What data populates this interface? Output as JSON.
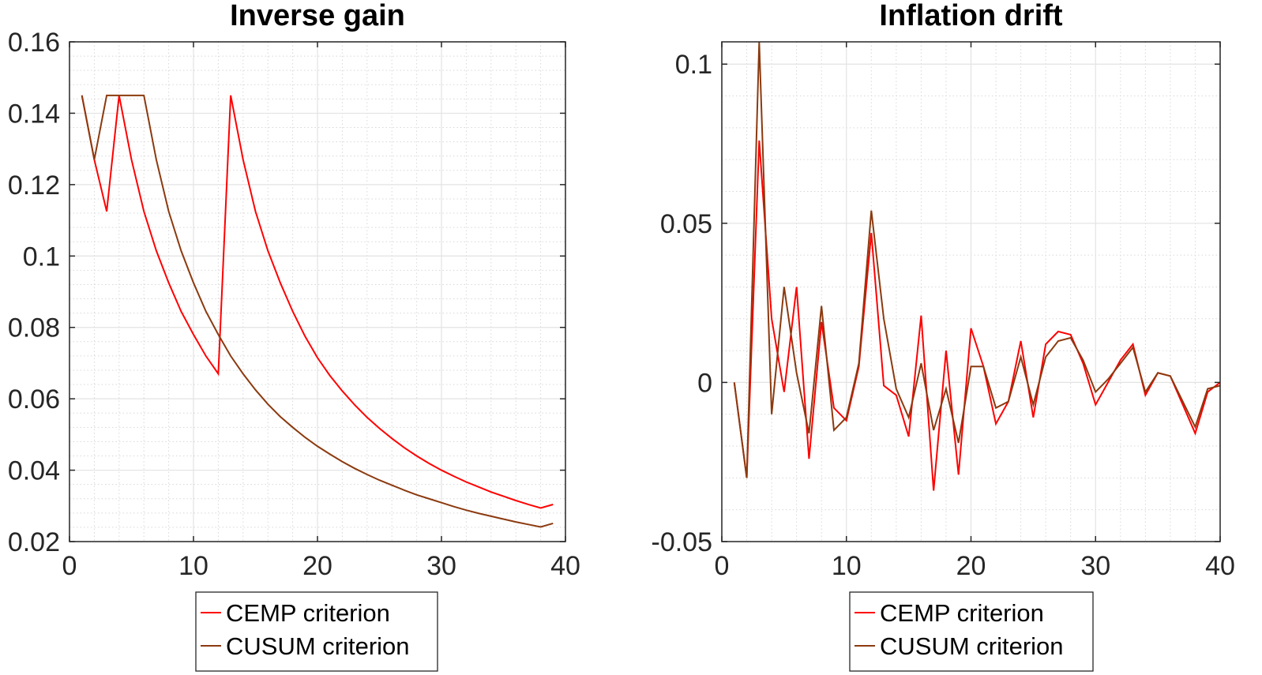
{
  "chart_data": [
    {
      "type": "line",
      "title": "Inverse gain",
      "xlabel": "",
      "ylabel": "",
      "xlim": [
        0,
        40
      ],
      "ylim": [
        0.02,
        0.16
      ],
      "xticks": [
        "0",
        "10",
        "20",
        "30",
        "40"
      ],
      "yticks": [
        "0.02",
        "0.04",
        "0.06",
        "0.08",
        "0.1",
        "0.12",
        "0.14",
        "0.16"
      ],
      "grid": true,
      "minor_grid": true,
      "legend_position": "below",
      "x": [
        1,
        2,
        3,
        4,
        5,
        6,
        7,
        8,
        9,
        10,
        11,
        12,
        13,
        14,
        15,
        16,
        17,
        18,
        19,
        20,
        21,
        22,
        23,
        24,
        25,
        26,
        27,
        28,
        29,
        30,
        31,
        32,
        33,
        34,
        35,
        36,
        37,
        38,
        39
      ],
      "series": [
        {
          "name": "CEMP criterion",
          "color": "#ff0000",
          "values": [
            0.145,
            0.127,
            0.1125,
            0.145,
            0.127,
            0.1125,
            0.1015,
            0.0925,
            0.0845,
            0.078,
            0.072,
            0.067,
            0.145,
            0.127,
            0.1125,
            0.1015,
            0.0925,
            0.0845,
            0.0775,
            0.0715,
            0.0665,
            0.0622,
            0.0583,
            0.0548,
            0.0517,
            0.0489,
            0.0463,
            0.044,
            0.0419,
            0.04,
            0.0383,
            0.0367,
            0.0353,
            0.0339,
            0.0327,
            0.0315,
            0.0304,
            0.0294,
            0.0304
          ]
        },
        {
          "name": "CUSUM criterion",
          "color": "#8b3a0f",
          "values": [
            0.145,
            0.127,
            0.145,
            0.145,
            0.145,
            0.145,
            0.127,
            0.1125,
            0.1015,
            0.0925,
            0.0845,
            0.078,
            0.072,
            0.067,
            0.0625,
            0.0585,
            0.055,
            0.052,
            0.0492,
            0.0467,
            0.0445,
            0.0424,
            0.0405,
            0.0388,
            0.0372,
            0.0358,
            0.0344,
            0.0331,
            0.032,
            0.0309,
            0.0298,
            0.0288,
            0.0279,
            0.0271,
            0.0263,
            0.0255,
            0.0248,
            0.0241,
            0.0251
          ]
        }
      ]
    },
    {
      "type": "line",
      "title": "Inflation drift",
      "xlabel": "",
      "ylabel": "",
      "xlim": [
        0,
        40
      ],
      "ylim": [
        -0.05,
        0.107
      ],
      "xticks": [
        "0",
        "10",
        "20",
        "30",
        "40"
      ],
      "yticks": [
        "-0.05",
        "0",
        "0.05",
        "0.1"
      ],
      "grid": true,
      "minor_grid": true,
      "legend_position": "below",
      "x": [
        1,
        2,
        3,
        4,
        5,
        6,
        7,
        8,
        9,
        10,
        11,
        12,
        13,
        14,
        15,
        16,
        17,
        18,
        19,
        20,
        21,
        22,
        23,
        24,
        25,
        26,
        27,
        28,
        29,
        30,
        31,
        32,
        33,
        34,
        35,
        36,
        37,
        38,
        39,
        40
      ],
      "series": [
        {
          "name": "CEMP criterion",
          "color": "#ff0000",
          "values": [
            0,
            -0.03,
            0.076,
            0.02,
            -0.003,
            0.03,
            -0.024,
            0.019,
            -0.008,
            -0.012,
            0.005,
            0.047,
            -0.001,
            -0.004,
            -0.017,
            0.021,
            -0.034,
            0.01,
            -0.029,
            0.017,
            0.005,
            -0.013,
            -0.006,
            0.013,
            -0.011,
            0.012,
            0.016,
            0.015,
            0.006,
            -0.007,
            0.0,
            0.007,
            0.012,
            -0.004,
            0.003,
            0.002,
            -0.007,
            -0.016,
            -0.003,
            0.0
          ]
        },
        {
          "name": "CUSUM criterion",
          "color": "#8b3a0f",
          "values": [
            0,
            -0.03,
            0.107,
            -0.01,
            0.03,
            0.003,
            -0.016,
            0.024,
            -0.015,
            -0.011,
            0.006,
            0.054,
            0.02,
            -0.002,
            -0.011,
            0.006,
            -0.015,
            -0.002,
            -0.019,
            0.005,
            0.005,
            -0.008,
            -0.006,
            0.008,
            -0.007,
            0.008,
            0.013,
            0.014,
            0.007,
            -0.003,
            0.001,
            0.006,
            0.011,
            -0.003,
            0.003,
            0.002,
            -0.006,
            -0.014,
            -0.002,
            -0.001
          ]
        }
      ]
    }
  ]
}
